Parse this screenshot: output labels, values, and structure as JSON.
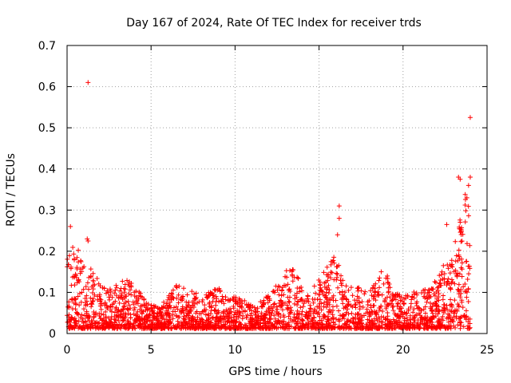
{
  "chart_data": {
    "type": "scatter",
    "title": "Day 167 of 2024, Rate Of TEC Index for receiver trds",
    "xlabel": "GPS time / hours",
    "ylabel": "ROTI / TECUs",
    "xlim": [
      0,
      25
    ],
    "ylim": [
      0,
      0.7
    ],
    "x_ticks": [
      "0",
      "5",
      "10",
      "15",
      "20",
      "25"
    ],
    "y_ticks": [
      "0",
      "0.1",
      "0.2",
      "0.3",
      "0.4",
      "0.5",
      "0.6",
      "0.7"
    ],
    "grid": true,
    "marker": "plus",
    "color": "#ff0000",
    "profile_hours": [
      0,
      0.5,
      1,
      1.5,
      2,
      2.5,
      3,
      3.5,
      4,
      4.5,
      5,
      5.5,
      6,
      6.5,
      7,
      7.5,
      8,
      8.5,
      9,
      9.5,
      10,
      10.5,
      11,
      11.5,
      12,
      12.5,
      13,
      13.5,
      14,
      14.5,
      15,
      15.5,
      16,
      16.5,
      17,
      17.5,
      18,
      18.5,
      19,
      19.5,
      20,
      20.5,
      21,
      21.5,
      22,
      22.5,
      23,
      23.5,
      24
    ],
    "profile_peak_roti": [
      0.2,
      0.2,
      0.18,
      0.14,
      0.12,
      0.1,
      0.11,
      0.12,
      0.11,
      0.08,
      0.06,
      0.05,
      0.08,
      0.11,
      0.1,
      0.09,
      0.08,
      0.09,
      0.1,
      0.08,
      0.08,
      0.07,
      0.06,
      0.07,
      0.08,
      0.11,
      0.14,
      0.15,
      0.1,
      0.09,
      0.14,
      0.15,
      0.19,
      0.11,
      0.1,
      0.1,
      0.09,
      0.12,
      0.14,
      0.09,
      0.08,
      0.09,
      0.1,
      0.1,
      0.12,
      0.15,
      0.2,
      0.3,
      0.37
    ],
    "outliers": [
      {
        "x": 1.25,
        "y": 0.61
      },
      {
        "x": 1.2,
        "y": 0.23
      },
      {
        "x": 1.25,
        "y": 0.225
      },
      {
        "x": 0.2,
        "y": 0.26
      },
      {
        "x": 16.2,
        "y": 0.31
      },
      {
        "x": 16.2,
        "y": 0.28
      },
      {
        "x": 16.1,
        "y": 0.24
      },
      {
        "x": 23.3,
        "y": 0.38
      },
      {
        "x": 23.4,
        "y": 0.375
      },
      {
        "x": 24.0,
        "y": 0.525
      },
      {
        "x": 24.0,
        "y": 0.38
      },
      {
        "x": 23.9,
        "y": 0.36
      },
      {
        "x": 23.8,
        "y": 0.33
      },
      {
        "x": 22.6,
        "y": 0.265
      },
      {
        "x": 18.7,
        "y": 0.15
      },
      {
        "x": 18.6,
        "y": 0.135
      },
      {
        "x": 22.4,
        "y": 0.165
      }
    ]
  }
}
